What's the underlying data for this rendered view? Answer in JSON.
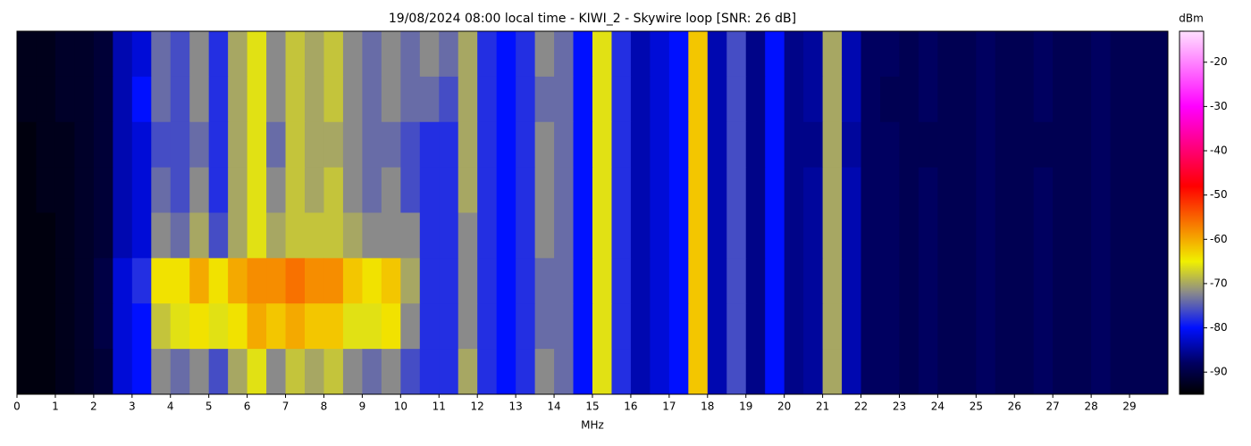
{
  "chart_data": {
    "type": "heatmap",
    "title": "19/08/2024 08:00 local time - KIWI_2 - Skywire loop [SNR: 26 dB]",
    "x_label": "MHz",
    "colorbar_label": "dBm",
    "xlim": [
      0,
      30
    ],
    "xticks": [
      0,
      1,
      2,
      3,
      4,
      5,
      6,
      7,
      8,
      9,
      10,
      11,
      12,
      13,
      14,
      15,
      16,
      17,
      18,
      19,
      20,
      21,
      22,
      23,
      24,
      25,
      26,
      27,
      28,
      29
    ],
    "clim": [
      -95,
      -13
    ],
    "cticks": [
      -90,
      -80,
      -70,
      -60,
      -50,
      -40,
      -30,
      -20
    ],
    "colormap": [
      {
        "value": -95,
        "color": "#000000"
      },
      {
        "value": -88,
        "color": "#000060"
      },
      {
        "value": -80,
        "color": "#0010ff"
      },
      {
        "value": -72,
        "color": "#8a8a8a"
      },
      {
        "value": -65,
        "color": "#f0f000"
      },
      {
        "value": -48,
        "color": "#ff0000"
      },
      {
        "value": -30,
        "color": "#ff00ff"
      },
      {
        "value": -13,
        "color": "#ffe0ff"
      }
    ],
    "x": [
      0.25,
      0.75,
      1.25,
      1.75,
      2.25,
      2.75,
      3.25,
      3.75,
      4.25,
      4.75,
      5.25,
      5.75,
      6.25,
      6.75,
      7.25,
      7.75,
      8.25,
      8.75,
      9.25,
      9.75,
      10.25,
      10.75,
      11.25,
      11.75,
      12.25,
      12.75,
      13.25,
      13.75,
      14.25,
      14.75,
      15.25,
      15.75,
      16.25,
      16.75,
      17.25,
      17.75,
      18.25,
      18.75,
      19.25,
      19.75,
      20.25,
      20.75,
      21.25,
      21.75,
      22.25,
      22.75,
      23.25,
      23.75,
      24.25,
      24.75,
      25.25,
      25.75,
      26.25,
      26.75,
      27.25,
      27.75,
      28.25,
      28.75,
      29.25,
      29.75
    ],
    "rows": [
      [
        -93,
        -93,
        -92,
        -92,
        -91,
        -84,
        -82,
        -74,
        -76,
        -72,
        -78,
        -70,
        -66,
        -72,
        -68,
        -70,
        -68,
        -72,
        -74,
        -72,
        -74,
        -72,
        -74,
        -70,
        -78,
        -80,
        -78,
        -72,
        -74,
        -80,
        -66,
        -78,
        -84,
        -82,
        -80,
        -62,
        -84,
        -76,
        -86,
        -80,
        -86,
        -85,
        -70,
        -84,
        -88,
        -88,
        -89,
        -88,
        -89,
        -89,
        -88,
        -89,
        -89,
        -88,
        -89,
        -89,
        -88,
        -89,
        -89,
        -89
      ],
      [
        -93,
        -93,
        -92,
        -92,
        -91,
        -84,
        -80,
        -74,
        -76,
        -72,
        -78,
        -70,
        -66,
        -72,
        -68,
        -70,
        -68,
        -72,
        -74,
        -72,
        -74,
        -74,
        -76,
        -70,
        -78,
        -80,
        -78,
        -74,
        -74,
        -80,
        -66,
        -78,
        -84,
        -82,
        -80,
        -62,
        -84,
        -76,
        -86,
        -80,
        -86,
        -85,
        -70,
        -84,
        -88,
        -89,
        -89,
        -88,
        -89,
        -89,
        -88,
        -89,
        -89,
        -88,
        -89,
        -89,
        -88,
        -89,
        -89,
        -89
      ],
      [
        -94,
        -93,
        -93,
        -92,
        -91,
        -84,
        -82,
        -76,
        -76,
        -74,
        -78,
        -70,
        -66,
        -74,
        -68,
        -70,
        -70,
        -72,
        -74,
        -74,
        -76,
        -78,
        -78,
        -70,
        -78,
        -80,
        -78,
        -72,
        -74,
        -80,
        -66,
        -78,
        -84,
        -82,
        -80,
        -62,
        -84,
        -76,
        -86,
        -80,
        -86,
        -86,
        -70,
        -85,
        -88,
        -88,
        -89,
        -89,
        -89,
        -89,
        -88,
        -89,
        -89,
        -89,
        -89,
        -89,
        -88,
        -89,
        -89,
        -89
      ],
      [
        -94,
        -93,
        -93,
        -92,
        -91,
        -84,
        -82,
        -74,
        -76,
        -72,
        -78,
        -70,
        -66,
        -72,
        -68,
        -70,
        -68,
        -72,
        -74,
        -72,
        -76,
        -78,
        -78,
        -70,
        -78,
        -80,
        -78,
        -72,
        -74,
        -80,
        -66,
        -78,
        -84,
        -82,
        -80,
        -62,
        -84,
        -76,
        -86,
        -80,
        -86,
        -85,
        -70,
        -84,
        -88,
        -88,
        -89,
        -88,
        -89,
        -89,
        -88,
        -89,
        -89,
        -88,
        -89,
        -89,
        -88,
        -89,
        -89,
        -89
      ],
      [
        -94,
        -94,
        -93,
        -92,
        -91,
        -84,
        -82,
        -72,
        -74,
        -70,
        -76,
        -70,
        -66,
        -70,
        -68,
        -68,
        -68,
        -70,
        -72,
        -72,
        -72,
        -78,
        -78,
        -72,
        -78,
        -80,
        -78,
        -72,
        -74,
        -80,
        -66,
        -78,
        -84,
        -82,
        -80,
        -62,
        -84,
        -76,
        -86,
        -80,
        -86,
        -85,
        -70,
        -84,
        -88,
        -88,
        -89,
        -88,
        -89,
        -89,
        -88,
        -89,
        -89,
        -88,
        -89,
        -89,
        -88,
        -89,
        -89,
        -89
      ],
      [
        -94,
        -94,
        -93,
        -92,
        -90,
        -82,
        -78,
        -64,
        -64,
        -60,
        -64,
        -60,
        -58,
        -58,
        -56,
        -58,
        -58,
        -62,
        -64,
        -62,
        -70,
        -78,
        -78,
        -72,
        -78,
        -80,
        -78,
        -74,
        -74,
        -80,
        -66,
        -78,
        -84,
        -82,
        -80,
        -62,
        -84,
        -76,
        -86,
        -80,
        -86,
        -85,
        -70,
        -84,
        -88,
        -88,
        -89,
        -88,
        -89,
        -89,
        -88,
        -89,
        -89,
        -88,
        -89,
        -89,
        -88,
        -89,
        -89,
        -89
      ],
      [
        -94,
        -94,
        -93,
        -92,
        -90,
        -82,
        -80,
        -68,
        -66,
        -64,
        -66,
        -64,
        -60,
        -62,
        -60,
        -62,
        -62,
        -66,
        -66,
        -64,
        -72,
        -78,
        -78,
        -72,
        -78,
        -80,
        -78,
        -74,
        -74,
        -80,
        -66,
        -78,
        -84,
        -82,
        -80,
        -62,
        -84,
        -76,
        -86,
        -80,
        -86,
        -85,
        -70,
        -84,
        -88,
        -88,
        -89,
        -88,
        -89,
        -89,
        -88,
        -89,
        -89,
        -88,
        -89,
        -89,
        -88,
        -89,
        -89,
        -89
      ],
      [
        -94,
        -94,
        -93,
        -92,
        -91,
        -82,
        -80,
        -72,
        -74,
        -72,
        -76,
        -70,
        -66,
        -72,
        -68,
        -70,
        -68,
        -72,
        -74,
        -72,
        -76,
        -78,
        -78,
        -70,
        -78,
        -80,
        -78,
        -72,
        -74,
        -80,
        -66,
        -78,
        -84,
        -82,
        -80,
        -62,
        -84,
        -76,
        -86,
        -80,
        -86,
        -85,
        -70,
        -84,
        -88,
        -88,
        -89,
        -88,
        -89,
        -89,
        -88,
        -89,
        -89,
        -88,
        -89,
        -89,
        -88,
        -89,
        -89,
        -89
      ]
    ]
  }
}
